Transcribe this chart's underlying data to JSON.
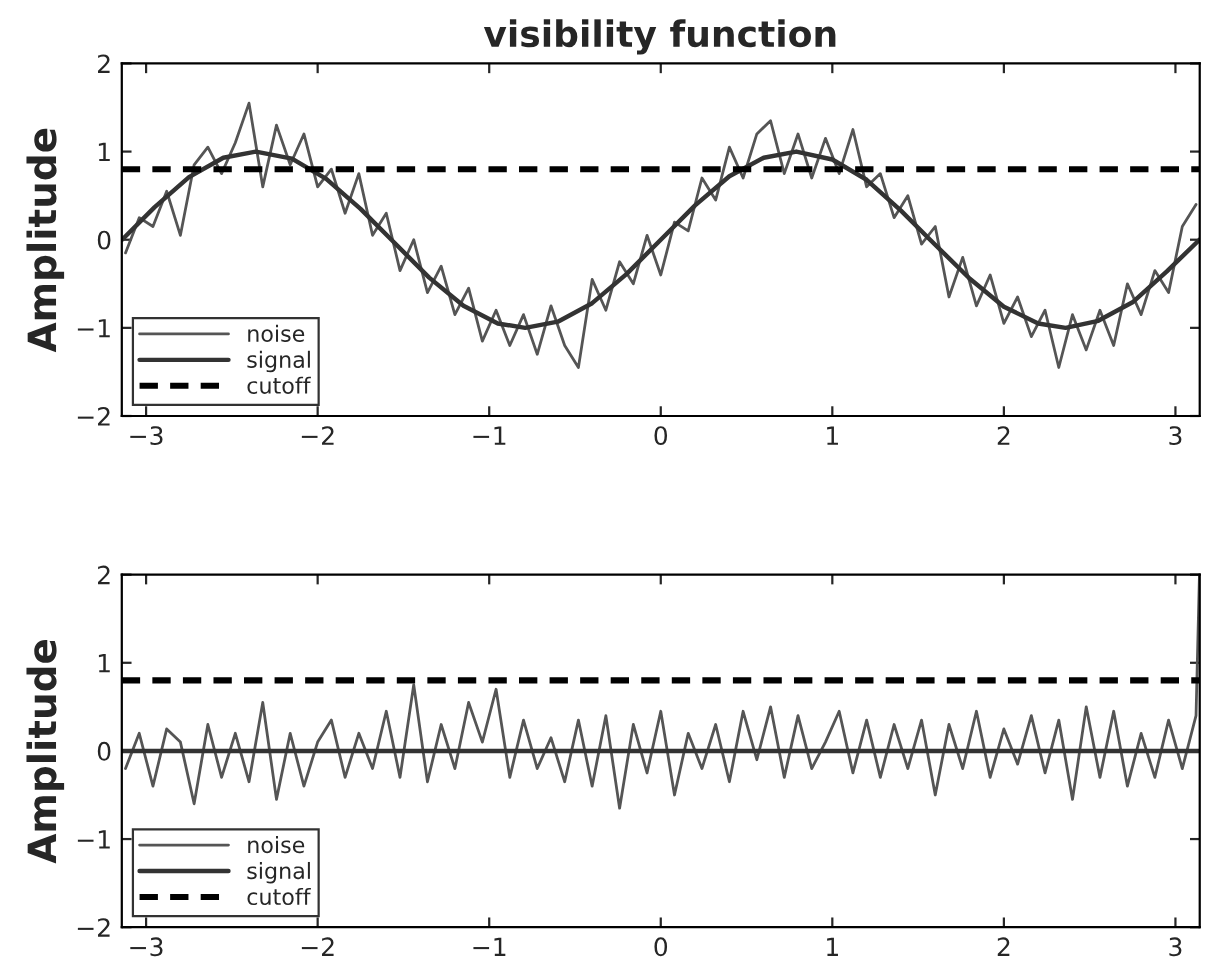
{
  "chart_data": [
    {
      "type": "line",
      "title": "visibility function",
      "ylabel": "Amplitude",
      "xlim": [
        -3.1416,
        3.1416
      ],
      "ylim": [
        -2,
        2
      ],
      "xticks": [
        -3,
        -2,
        -1,
        0,
        1,
        2,
        3
      ],
      "yticks": [
        -2,
        -1,
        0,
        1,
        2
      ],
      "grid": false,
      "legend": "bottom left",
      "series": [
        {
          "name": "noise",
          "color": "#555555",
          "line_style": "solid",
          "x": [
            -3.12,
            -3.04,
            -2.96,
            -2.88,
            -2.8,
            -2.72,
            -2.64,
            -2.56,
            -2.48,
            -2.4,
            -2.32,
            -2.24,
            -2.16,
            -2.08,
            -2.0,
            -1.92,
            -1.84,
            -1.76,
            -1.68,
            -1.6,
            -1.52,
            -1.44,
            -1.36,
            -1.28,
            -1.2,
            -1.12,
            -1.04,
            -0.96,
            -0.88,
            -0.8,
            -0.72,
            -0.64,
            -0.56,
            -0.48,
            -0.4,
            -0.32,
            -0.24,
            -0.16,
            -0.08,
            0.0,
            0.08,
            0.16,
            0.24,
            0.32,
            0.4,
            0.48,
            0.56,
            0.64,
            0.72,
            0.8,
            0.88,
            0.96,
            1.04,
            1.12,
            1.2,
            1.28,
            1.36,
            1.44,
            1.52,
            1.6,
            1.68,
            1.76,
            1.84,
            1.92,
            2.0,
            2.08,
            2.16,
            2.24,
            2.32,
            2.4,
            2.48,
            2.56,
            2.64,
            2.72,
            2.8,
            2.88,
            2.96,
            3.04,
            3.12
          ],
          "values": [
            -0.15,
            0.25,
            0.15,
            0.55,
            0.05,
            0.85,
            1.05,
            0.75,
            1.1,
            1.55,
            0.6,
            1.3,
            0.85,
            1.2,
            0.6,
            0.8,
            0.3,
            0.75,
            0.05,
            0.3,
            -0.35,
            0.0,
            -0.6,
            -0.3,
            -0.85,
            -0.55,
            -1.15,
            -0.8,
            -1.2,
            -0.85,
            -1.3,
            -0.75,
            -1.2,
            -1.45,
            -0.45,
            -0.8,
            -0.25,
            -0.5,
            0.05,
            -0.4,
            0.2,
            0.1,
            0.7,
            0.45,
            1.05,
            0.7,
            1.2,
            1.35,
            0.75,
            1.2,
            0.7,
            1.15,
            0.75,
            1.25,
            0.6,
            0.75,
            0.25,
            0.5,
            -0.05,
            0.15,
            -0.65,
            -0.2,
            -0.75,
            -0.4,
            -0.95,
            -0.65,
            -1.1,
            -0.8,
            -1.45,
            -0.85,
            -1.25,
            -0.8,
            -1.2,
            -0.5,
            -0.85,
            -0.35,
            -0.6,
            0.15,
            0.4
          ]
        },
        {
          "name": "signal",
          "color": "#333333",
          "line_style": "solid",
          "x": [
            -3.14,
            -2.95,
            -2.75,
            -2.55,
            -2.36,
            -2.15,
            -1.95,
            -1.75,
            -1.57,
            -1.35,
            -1.15,
            -0.95,
            -0.79,
            -0.6,
            -0.4,
            -0.2,
            0,
            0.2,
            0.4,
            0.6,
            0.79,
            1.0,
            1.2,
            1.4,
            1.57,
            1.8,
            2.0,
            2.2,
            2.36,
            2.55,
            2.75,
            2.95,
            3.14
          ],
          "values": [
            0,
            0.37,
            0.71,
            0.93,
            1.0,
            0.92,
            0.69,
            0.35,
            0,
            -0.43,
            -0.75,
            -0.95,
            -1.0,
            -0.93,
            -0.72,
            -0.39,
            0,
            0.39,
            0.72,
            0.93,
            1.0,
            0.91,
            0.68,
            0.33,
            0,
            -0.44,
            -0.76,
            -0.95,
            -1.0,
            -0.92,
            -0.71,
            -0.36,
            0
          ]
        },
        {
          "name": "cutoff",
          "color": "#000000",
          "line_style": "dashed",
          "x": [
            -3.1416,
            3.1416
          ],
          "values": [
            0.8,
            0.8
          ]
        }
      ]
    },
    {
      "type": "line",
      "ylabel": "Amplitude",
      "xlim": [
        -3.1416,
        3.1416
      ],
      "ylim": [
        -2,
        2
      ],
      "xticks": [
        -3,
        -2,
        -1,
        0,
        1,
        2,
        3
      ],
      "yticks": [
        -2,
        -1,
        0,
        1,
        2
      ],
      "grid": false,
      "legend": "bottom left",
      "series": [
        {
          "name": "noise",
          "color": "#555555",
          "line_style": "solid",
          "x": [
            -3.12,
            -3.04,
            -2.96,
            -2.88,
            -2.8,
            -2.72,
            -2.64,
            -2.56,
            -2.48,
            -2.4,
            -2.32,
            -2.24,
            -2.16,
            -2.08,
            -2.0,
            -1.92,
            -1.84,
            -1.76,
            -1.68,
            -1.6,
            -1.52,
            -1.44,
            -1.36,
            -1.28,
            -1.2,
            -1.12,
            -1.04,
            -0.96,
            -0.88,
            -0.8,
            -0.72,
            -0.64,
            -0.56,
            -0.48,
            -0.4,
            -0.32,
            -0.24,
            -0.16,
            -0.08,
            0.0,
            0.08,
            0.16,
            0.24,
            0.32,
            0.4,
            0.48,
            0.56,
            0.64,
            0.72,
            0.8,
            0.88,
            0.96,
            1.04,
            1.12,
            1.2,
            1.28,
            1.36,
            1.44,
            1.52,
            1.6,
            1.68,
            1.76,
            1.84,
            1.92,
            2.0,
            2.08,
            2.16,
            2.24,
            2.32,
            2.4,
            2.48,
            2.56,
            2.64,
            2.72,
            2.8,
            2.88,
            2.96,
            3.04,
            3.12,
            3.14
          ],
          "values": [
            -0.2,
            0.2,
            -0.4,
            0.25,
            0.1,
            -0.6,
            0.3,
            -0.3,
            0.2,
            -0.35,
            0.55,
            -0.55,
            0.2,
            -0.4,
            0.1,
            0.35,
            -0.3,
            0.2,
            -0.2,
            0.45,
            -0.3,
            0.75,
            -0.35,
            0.3,
            -0.2,
            0.55,
            0.1,
            0.7,
            -0.3,
            0.35,
            -0.2,
            0.15,
            -0.35,
            0.35,
            -0.4,
            0.4,
            -0.65,
            0.3,
            -0.25,
            0.45,
            -0.5,
            0.2,
            -0.2,
            0.3,
            -0.35,
            0.45,
            -0.1,
            0.5,
            -0.3,
            0.4,
            -0.2,
            0.1,
            0.45,
            -0.25,
            0.35,
            -0.3,
            0.3,
            -0.2,
            0.35,
            -0.5,
            0.3,
            -0.2,
            0.45,
            -0.3,
            0.25,
            -0.15,
            0.4,
            -0.25,
            0.35,
            -0.55,
            0.5,
            -0.3,
            0.45,
            -0.4,
            0.2,
            -0.3,
            0.35,
            -0.2,
            0.4,
            2.0
          ]
        },
        {
          "name": "signal",
          "color": "#333333",
          "line_style": "solid",
          "x": [
            -3.1416,
            3.1416
          ],
          "values": [
            0,
            0
          ]
        },
        {
          "name": "cutoff",
          "color": "#000000",
          "line_style": "dashed",
          "x": [
            -3.1416,
            3.1416
          ],
          "values": [
            0.8,
            0.8
          ]
        }
      ]
    }
  ]
}
